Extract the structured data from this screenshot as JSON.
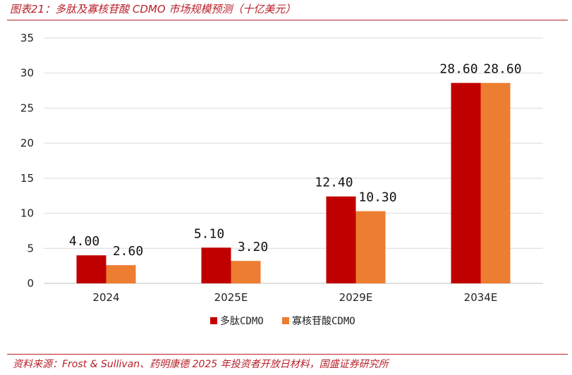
{
  "figure_title": "图表21：多肽及寡核苷酸 CDMO 市场规模预测（十亿美元）",
  "source": "资料来源：Frost & Sullivan、药明康德 2025 年投资者开放日材料，国盛证券研究所",
  "chart_data": {
    "type": "bar",
    "title": "",
    "xlabel": "",
    "ylabel": "",
    "categories": [
      "2024",
      "2025E",
      "2029E",
      "2034E"
    ],
    "series": [
      {
        "name": "多肽CDMO",
        "values": [
          4.0,
          5.1,
          12.4,
          28.6
        ],
        "labels": [
          "4.00",
          "5.10",
          "12.40",
          "28.60"
        ],
        "color": "#c00000"
      },
      {
        "name": "寡核苷酸CDMO",
        "values": [
          2.6,
          3.2,
          10.3,
          28.6
        ],
        "labels": [
          "2.60",
          "3.20",
          "10.30",
          "28.60"
        ],
        "color": "#ed7d31"
      }
    ],
    "ylim": [
      0,
      35
    ],
    "yticks": [
      0,
      5,
      10,
      15,
      20,
      25,
      30,
      35
    ],
    "grid": true,
    "legend": "bottom-center"
  }
}
